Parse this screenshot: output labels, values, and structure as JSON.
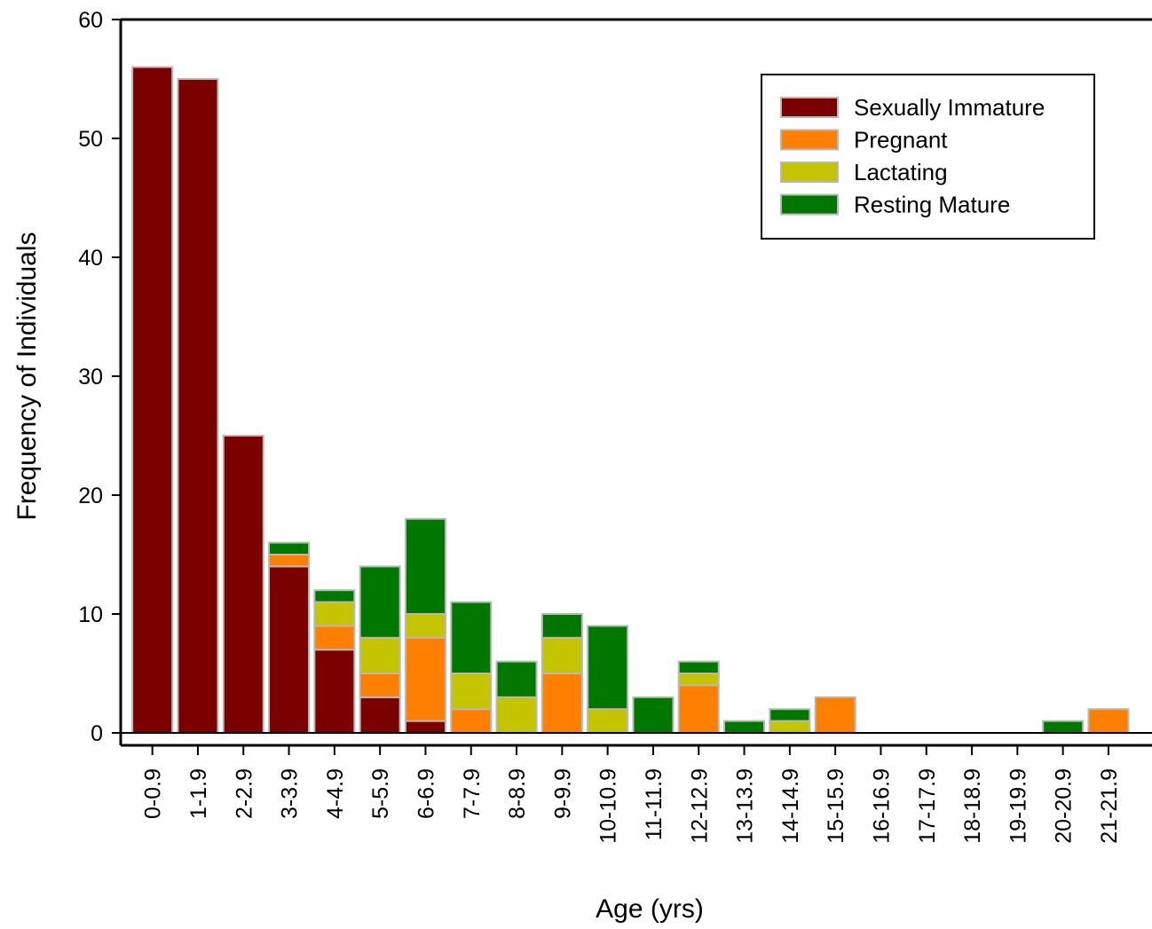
{
  "chart_data": {
    "type": "bar",
    "stacked": true,
    "title": "",
    "xlabel": "Age (yrs)",
    "ylabel": "Frequency of Individuals",
    "ylim": [
      0,
      60
    ],
    "yticks": [
      "0",
      "10",
      "20",
      "30",
      "40",
      "50",
      "60"
    ],
    "categories": [
      "0-0.9",
      "1-1.9",
      "2-2.9",
      "3-3.9",
      "4-4.9",
      "5-5.9",
      "6-6.9",
      "7-7.9",
      "8-8.9",
      "9-9.9",
      "10-10.9",
      "11-11.9",
      "12-12.9",
      "13-13.9",
      "14-14.9",
      "15-15.9",
      "16-16.9",
      "17-17.9",
      "18-18.9",
      "19-19.9",
      "20-20.9",
      "21-21.9"
    ],
    "series": [
      {
        "name": "Sexually Immature",
        "color": "#7b0000",
        "values": [
          56,
          55,
          25,
          14,
          7,
          3,
          1,
          0,
          0,
          0,
          0,
          0,
          0,
          0,
          0,
          0,
          0,
          0,
          0,
          0,
          0,
          0
        ]
      },
      {
        "name": "Pregnant",
        "color": "#ff8000",
        "values": [
          0,
          0,
          0,
          1,
          2,
          2,
          7,
          2,
          0,
          5,
          0,
          0,
          4,
          0,
          0,
          3,
          0,
          0,
          0,
          0,
          0,
          2
        ]
      },
      {
        "name": "Lactating",
        "color": "#c4c400",
        "values": [
          0,
          0,
          0,
          0,
          2,
          3,
          2,
          3,
          3,
          3,
          2,
          0,
          1,
          0,
          1,
          0,
          0,
          0,
          0,
          0,
          0,
          0
        ]
      },
      {
        "name": "Resting Mature",
        "color": "#007800",
        "values": [
          0,
          0,
          0,
          1,
          1,
          6,
          8,
          6,
          3,
          2,
          7,
          3,
          1,
          1,
          1,
          0,
          0,
          0,
          0,
          0,
          1,
          0
        ]
      }
    ],
    "legend_position": "top-right",
    "grid": false
  }
}
